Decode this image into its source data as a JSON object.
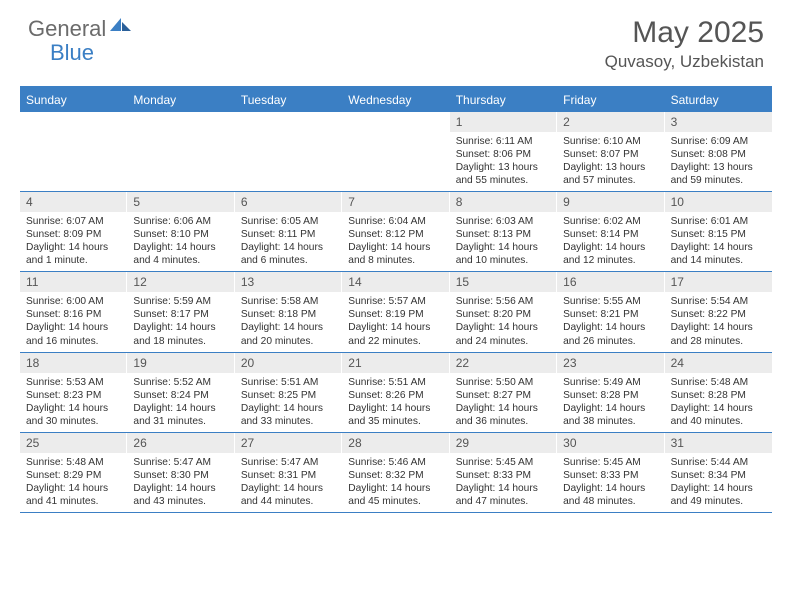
{
  "logo": {
    "text1": "General",
    "text2": "Blue"
  },
  "title": "May 2025",
  "location": "Quvasoy, Uzbekistan",
  "colors": {
    "header_bar": "#3b7fc4",
    "daynum_bg": "#ececec",
    "text_gray": "#555555",
    "text_dark": "#333333",
    "logo_gray": "#6b6b6b",
    "logo_blue": "#3b7fc4",
    "background": "#ffffff"
  },
  "day_headers": [
    "Sunday",
    "Monday",
    "Tuesday",
    "Wednesday",
    "Thursday",
    "Friday",
    "Saturday"
  ],
  "weeks": [
    [
      {
        "n": "",
        "sunrise": "",
        "sunset": "",
        "daylight": ""
      },
      {
        "n": "",
        "sunrise": "",
        "sunset": "",
        "daylight": ""
      },
      {
        "n": "",
        "sunrise": "",
        "sunset": "",
        "daylight": ""
      },
      {
        "n": "",
        "sunrise": "",
        "sunset": "",
        "daylight": ""
      },
      {
        "n": "1",
        "sunrise": "Sunrise: 6:11 AM",
        "sunset": "Sunset: 8:06 PM",
        "daylight": "Daylight: 13 hours and 55 minutes."
      },
      {
        "n": "2",
        "sunrise": "Sunrise: 6:10 AM",
        "sunset": "Sunset: 8:07 PM",
        "daylight": "Daylight: 13 hours and 57 minutes."
      },
      {
        "n": "3",
        "sunrise": "Sunrise: 6:09 AM",
        "sunset": "Sunset: 8:08 PM",
        "daylight": "Daylight: 13 hours and 59 minutes."
      }
    ],
    [
      {
        "n": "4",
        "sunrise": "Sunrise: 6:07 AM",
        "sunset": "Sunset: 8:09 PM",
        "daylight": "Daylight: 14 hours and 1 minute."
      },
      {
        "n": "5",
        "sunrise": "Sunrise: 6:06 AM",
        "sunset": "Sunset: 8:10 PM",
        "daylight": "Daylight: 14 hours and 4 minutes."
      },
      {
        "n": "6",
        "sunrise": "Sunrise: 6:05 AM",
        "sunset": "Sunset: 8:11 PM",
        "daylight": "Daylight: 14 hours and 6 minutes."
      },
      {
        "n": "7",
        "sunrise": "Sunrise: 6:04 AM",
        "sunset": "Sunset: 8:12 PM",
        "daylight": "Daylight: 14 hours and 8 minutes."
      },
      {
        "n": "8",
        "sunrise": "Sunrise: 6:03 AM",
        "sunset": "Sunset: 8:13 PM",
        "daylight": "Daylight: 14 hours and 10 minutes."
      },
      {
        "n": "9",
        "sunrise": "Sunrise: 6:02 AM",
        "sunset": "Sunset: 8:14 PM",
        "daylight": "Daylight: 14 hours and 12 minutes."
      },
      {
        "n": "10",
        "sunrise": "Sunrise: 6:01 AM",
        "sunset": "Sunset: 8:15 PM",
        "daylight": "Daylight: 14 hours and 14 minutes."
      }
    ],
    [
      {
        "n": "11",
        "sunrise": "Sunrise: 6:00 AM",
        "sunset": "Sunset: 8:16 PM",
        "daylight": "Daylight: 14 hours and 16 minutes."
      },
      {
        "n": "12",
        "sunrise": "Sunrise: 5:59 AM",
        "sunset": "Sunset: 8:17 PM",
        "daylight": "Daylight: 14 hours and 18 minutes."
      },
      {
        "n": "13",
        "sunrise": "Sunrise: 5:58 AM",
        "sunset": "Sunset: 8:18 PM",
        "daylight": "Daylight: 14 hours and 20 minutes."
      },
      {
        "n": "14",
        "sunrise": "Sunrise: 5:57 AM",
        "sunset": "Sunset: 8:19 PM",
        "daylight": "Daylight: 14 hours and 22 minutes."
      },
      {
        "n": "15",
        "sunrise": "Sunrise: 5:56 AM",
        "sunset": "Sunset: 8:20 PM",
        "daylight": "Daylight: 14 hours and 24 minutes."
      },
      {
        "n": "16",
        "sunrise": "Sunrise: 5:55 AM",
        "sunset": "Sunset: 8:21 PM",
        "daylight": "Daylight: 14 hours and 26 minutes."
      },
      {
        "n": "17",
        "sunrise": "Sunrise: 5:54 AM",
        "sunset": "Sunset: 8:22 PM",
        "daylight": "Daylight: 14 hours and 28 minutes."
      }
    ],
    [
      {
        "n": "18",
        "sunrise": "Sunrise: 5:53 AM",
        "sunset": "Sunset: 8:23 PM",
        "daylight": "Daylight: 14 hours and 30 minutes."
      },
      {
        "n": "19",
        "sunrise": "Sunrise: 5:52 AM",
        "sunset": "Sunset: 8:24 PM",
        "daylight": "Daylight: 14 hours and 31 minutes."
      },
      {
        "n": "20",
        "sunrise": "Sunrise: 5:51 AM",
        "sunset": "Sunset: 8:25 PM",
        "daylight": "Daylight: 14 hours and 33 minutes."
      },
      {
        "n": "21",
        "sunrise": "Sunrise: 5:51 AM",
        "sunset": "Sunset: 8:26 PM",
        "daylight": "Daylight: 14 hours and 35 minutes."
      },
      {
        "n": "22",
        "sunrise": "Sunrise: 5:50 AM",
        "sunset": "Sunset: 8:27 PM",
        "daylight": "Daylight: 14 hours and 36 minutes."
      },
      {
        "n": "23",
        "sunrise": "Sunrise: 5:49 AM",
        "sunset": "Sunset: 8:28 PM",
        "daylight": "Daylight: 14 hours and 38 minutes."
      },
      {
        "n": "24",
        "sunrise": "Sunrise: 5:48 AM",
        "sunset": "Sunset: 8:28 PM",
        "daylight": "Daylight: 14 hours and 40 minutes."
      }
    ],
    [
      {
        "n": "25",
        "sunrise": "Sunrise: 5:48 AM",
        "sunset": "Sunset: 8:29 PM",
        "daylight": "Daylight: 14 hours and 41 minutes."
      },
      {
        "n": "26",
        "sunrise": "Sunrise: 5:47 AM",
        "sunset": "Sunset: 8:30 PM",
        "daylight": "Daylight: 14 hours and 43 minutes."
      },
      {
        "n": "27",
        "sunrise": "Sunrise: 5:47 AM",
        "sunset": "Sunset: 8:31 PM",
        "daylight": "Daylight: 14 hours and 44 minutes."
      },
      {
        "n": "28",
        "sunrise": "Sunrise: 5:46 AM",
        "sunset": "Sunset: 8:32 PM",
        "daylight": "Daylight: 14 hours and 45 minutes."
      },
      {
        "n": "29",
        "sunrise": "Sunrise: 5:45 AM",
        "sunset": "Sunset: 8:33 PM",
        "daylight": "Daylight: 14 hours and 47 minutes."
      },
      {
        "n": "30",
        "sunrise": "Sunrise: 5:45 AM",
        "sunset": "Sunset: 8:33 PM",
        "daylight": "Daylight: 14 hours and 48 minutes."
      },
      {
        "n": "31",
        "sunrise": "Sunrise: 5:44 AM",
        "sunset": "Sunset: 8:34 PM",
        "daylight": "Daylight: 14 hours and 49 minutes."
      }
    ]
  ]
}
